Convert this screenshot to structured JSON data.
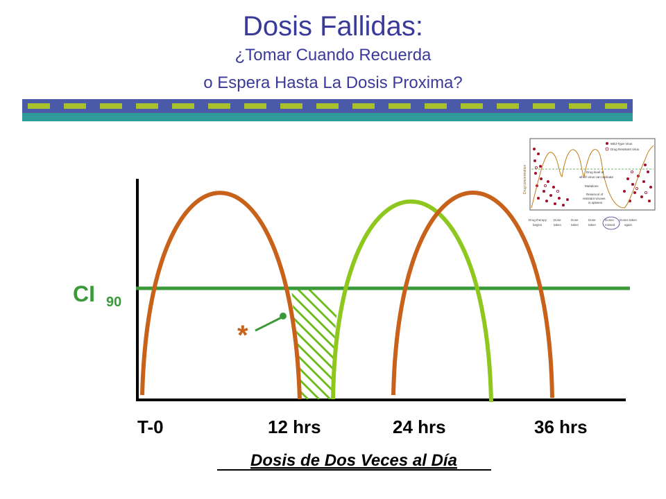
{
  "slide": {
    "title": "Dosis Fallidas:",
    "subtitle_line1": "¿Tomar Cuando Recuerda",
    "subtitle_line2": "o Espera Hasta La Dosis Proxima?"
  },
  "diagram": {
    "threshold_label": "CI",
    "threshold_subscript": "90",
    "marker_symbol": "*",
    "x_labels": [
      "T-0",
      "12 hrs",
      "24 hrs",
      "36 hrs"
    ],
    "caption": "Dosis de Dos Veces al Día"
  },
  "inset": {
    "legend": [
      "Wild-Type Virus",
      "Drug Resistant Virus"
    ],
    "y_axis_label": "Drug concentration",
    "annotations": [
      "Drug level at",
      "which virus can replicate",
      "Mutations",
      "Reservoir of",
      "resistant viruses",
      "in spleens"
    ],
    "events": [
      [
        "Drug therapy",
        "begins"
      ],
      [
        "Dose",
        "taken"
      ],
      [
        "Dose",
        "taken"
      ],
      [
        "Dose",
        "taken"
      ],
      [
        "Doses",
        "missed"
      ],
      [
        "Doses taken",
        "again"
      ]
    ]
  },
  "colors": {
    "title": "#3a3a9a",
    "bar_blue": "#4a5aa8",
    "bar_teal": "#2e9a9a",
    "bar_dash": "#a8c02a",
    "threshold_line": "#3a9a3a",
    "dose_on_time": "#c8621a",
    "dose_late": "#8ec81e",
    "hatch": "#6cbf1e"
  }
}
